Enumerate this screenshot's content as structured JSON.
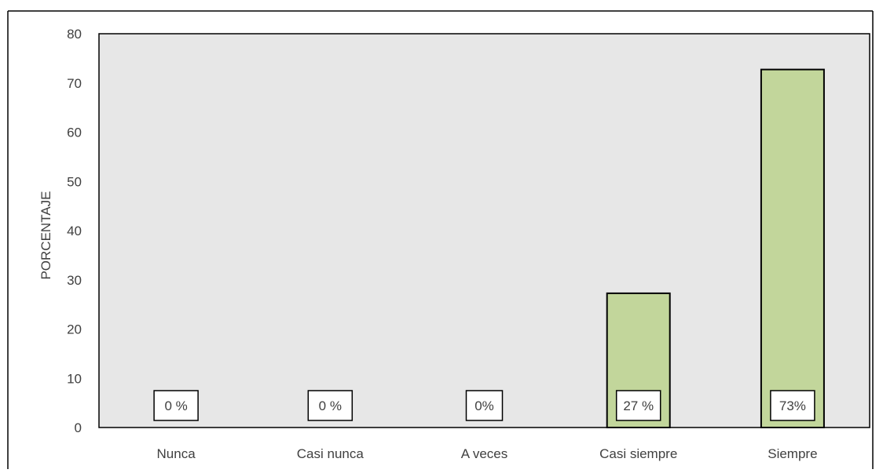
{
  "chart_data": {
    "type": "bar",
    "categories": [
      "Nunca",
      "Casi nunca",
      "A veces",
      "Casi siempre",
      "Siempre"
    ],
    "values": [
      0,
      0,
      0,
      27.27,
      72.73
    ],
    "data_labels": [
      "0 %",
      "0 %",
      "0%",
      "27 %",
      "73%"
    ],
    "title": "",
    "xlabel": "",
    "ylabel": "PORCENTAJE",
    "ylim": [
      0,
      80
    ],
    "yticks": [
      0,
      10,
      20,
      30,
      40,
      50,
      60,
      70,
      80
    ],
    "grid": false,
    "legend": "none",
    "colors": {
      "bar_fill": "#c2d69b",
      "bar_stroke": "#000000",
      "plot_background": "#e7e7e7",
      "label_box_fill": "#ffffff",
      "label_box_stroke": "#000000",
      "text": "#404040"
    }
  }
}
